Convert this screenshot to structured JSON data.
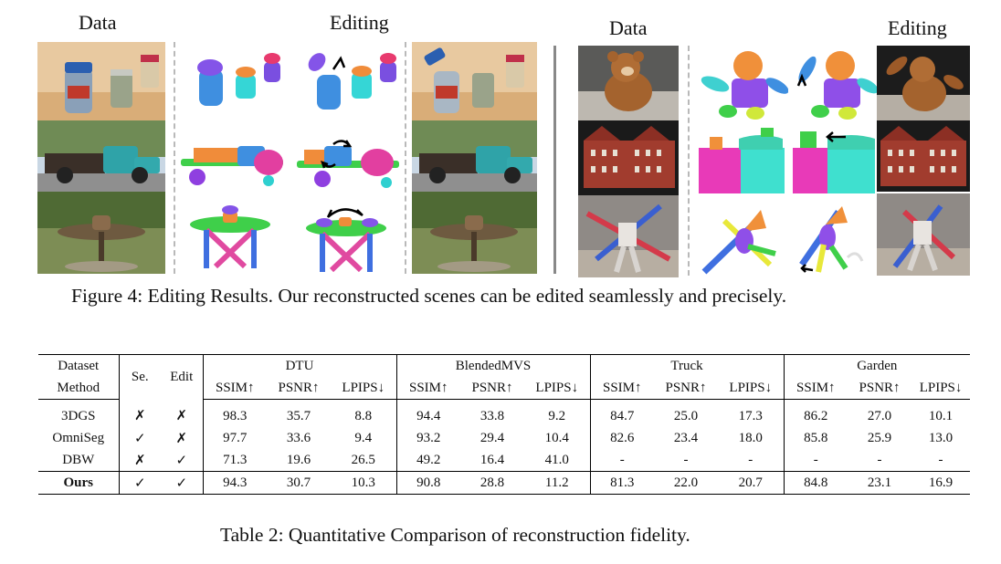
{
  "figure": {
    "left_headers": {
      "data": "Data",
      "editing": "Editing"
    },
    "right_headers": {
      "data": "Data",
      "editing": "Editing"
    },
    "caption": "Figure 4: Editing Results. Our reconstructed scenes can be edited seamlessly and precisely."
  },
  "table": {
    "caption": "Table 2: Quantitative Comparison of reconstruction fidelity.",
    "header": {
      "dataset": "Dataset",
      "method": "Method",
      "se": "Se.",
      "edit": "Edit",
      "groups": [
        "DTU",
        "BlendedMVS",
        "Truck",
        "Garden"
      ],
      "metrics": [
        "SSIM↑",
        "PSNR↑",
        "LPIPS↓"
      ]
    },
    "rows": [
      {
        "method": "3DGS",
        "se": "✗",
        "edit": "✗",
        "vals": [
          "98.3",
          "35.7",
          "8.8",
          "94.4",
          "33.8",
          "9.2",
          "84.7",
          "25.0",
          "17.3",
          "86.2",
          "27.0",
          "10.1"
        ]
      },
      {
        "method": "OmniSeg",
        "se": "✓",
        "edit": "✗",
        "vals": [
          "97.7",
          "33.6",
          "9.4",
          "93.2",
          "29.4",
          "10.4",
          "82.6",
          "23.4",
          "18.0",
          "85.8",
          "25.9",
          "13.0"
        ]
      },
      {
        "method": "DBW",
        "se": "✗",
        "edit": "✓",
        "vals": [
          "71.3",
          "19.6",
          "26.5",
          "49.2",
          "16.4",
          "41.0",
          "-",
          "-",
          "-",
          "-",
          "-",
          "-"
        ]
      },
      {
        "method": "Ours",
        "se": "✓",
        "edit": "✓",
        "vals": [
          "94.3",
          "30.7",
          "10.3",
          "90.8",
          "28.8",
          "11.2",
          "81.3",
          "22.0",
          "20.7",
          "84.8",
          "23.1",
          "16.9"
        ]
      }
    ]
  }
}
